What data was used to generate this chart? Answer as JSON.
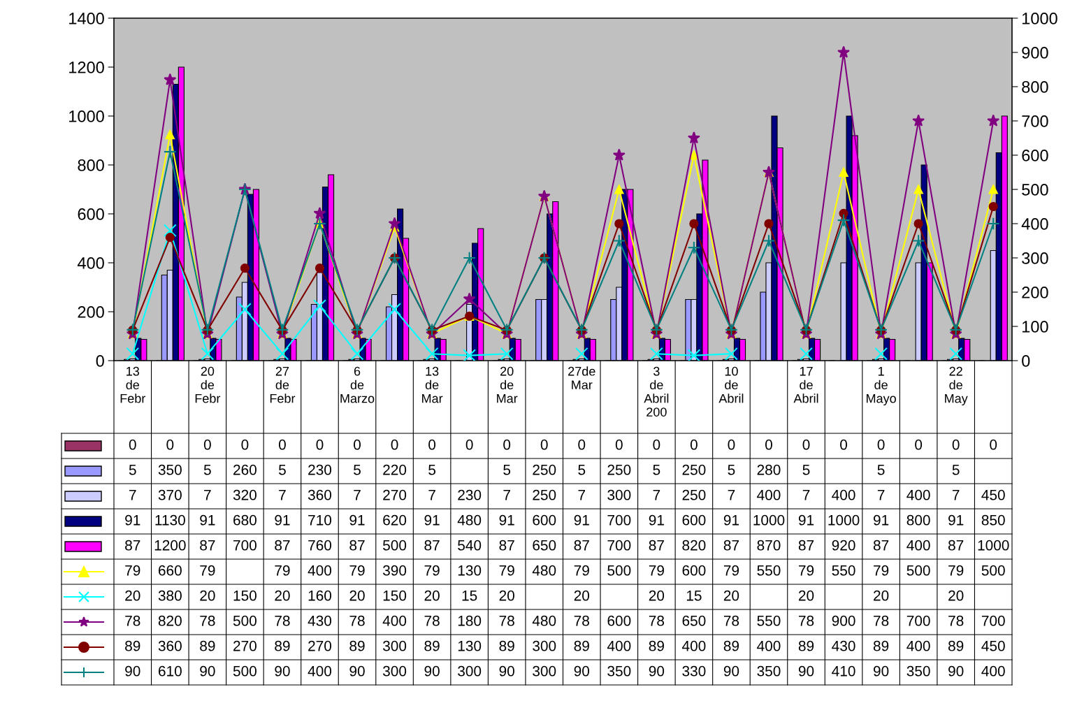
{
  "chart_data": {
    "type": "bar",
    "categories": [
      "13 de Febr",
      null,
      "20 de Febr",
      null,
      "27 de Febr",
      null,
      "6 de Marzo",
      null,
      "13 de Mar",
      null,
      "20 de Mar",
      null,
      "27de Mar",
      null,
      "3 de Abril 200",
      null,
      "10 de Abril",
      null,
      "17 de Abril",
      null,
      "1 de Mayo",
      null,
      "22 de May",
      null
    ],
    "series": [
      {
        "color": "#993366",
        "values": [
          0,
          0,
          0,
          0,
          0,
          0,
          0,
          0,
          0,
          0,
          0,
          0,
          0,
          0,
          0,
          0,
          0,
          0,
          0,
          0,
          0,
          0,
          0,
          0
        ]
      },
      {
        "color": "#9999ff",
        "values": [
          5,
          350,
          5,
          260,
          5,
          230,
          5,
          220,
          5,
          null,
          5,
          250,
          5,
          250,
          5,
          250,
          5,
          280,
          5,
          null,
          5,
          null,
          5,
          null
        ]
      },
      {
        "color": "#ccccff",
        "values": [
          7,
          370,
          7,
          320,
          7,
          360,
          7,
          270,
          7,
          230,
          7,
          250,
          7,
          300,
          7,
          250,
          7,
          400,
          7,
          400,
          7,
          400,
          7,
          450
        ]
      },
      {
        "color": "#000080",
        "values": [
          91,
          1130,
          91,
          680,
          91,
          710,
          91,
          620,
          91,
          480,
          91,
          600,
          91,
          700,
          91,
          600,
          91,
          1000,
          91,
          1000,
          91,
          800,
          91,
          850
        ]
      },
      {
        "color": "#ff00ff",
        "values": [
          87,
          1200,
          87,
          700,
          87,
          760,
          87,
          500,
          87,
          540,
          87,
          650,
          87,
          700,
          87,
          820,
          87,
          870,
          87,
          920,
          87,
          400,
          87,
          1000
        ]
      },
      {
        "type": "line",
        "axis": "y2",
        "color": "#ffff00",
        "marker": "triangle",
        "values": [
          79,
          660,
          79,
          null,
          79,
          400,
          79,
          390,
          79,
          130,
          79,
          480,
          79,
          500,
          79,
          600,
          79,
          550,
          79,
          550,
          79,
          500,
          79,
          500
        ]
      },
      {
        "type": "line",
        "axis": "y2",
        "color": "#00ffff",
        "marker": "cross",
        "values": [
          20,
          380,
          20,
          150,
          20,
          160,
          20,
          150,
          20,
          15,
          20,
          null,
          20,
          null,
          20,
          15,
          20,
          null,
          20,
          null,
          20,
          null,
          20,
          null
        ]
      },
      {
        "type": "line",
        "axis": "y2",
        "color": "#800080",
        "marker": "star",
        "values": [
          78,
          820,
          78,
          500,
          78,
          430,
          78,
          400,
          78,
          180,
          78,
          480,
          78,
          600,
          78,
          650,
          78,
          550,
          78,
          900,
          78,
          700,
          78,
          700
        ]
      },
      {
        "type": "line",
        "axis": "y2",
        "color": "#800000",
        "marker": "circle",
        "values": [
          89,
          360,
          89,
          270,
          89,
          270,
          89,
          300,
          89,
          130,
          89,
          300,
          89,
          400,
          89,
          400,
          89,
          400,
          89,
          430,
          89,
          400,
          89,
          450
        ]
      },
      {
        "type": "line",
        "axis": "y2",
        "color": "#008080",
        "marker": "plus",
        "values": [
          90,
          610,
          90,
          500,
          90,
          400,
          90,
          300,
          90,
          300,
          90,
          300,
          90,
          350,
          90,
          330,
          90,
          350,
          90,
          410,
          90,
          350,
          90,
          400
        ]
      }
    ],
    "ylim": [
      0,
      1400
    ],
    "yticks": [
      0,
      200,
      400,
      600,
      800,
      1000,
      1200,
      1400
    ],
    "y2lim": [
      0,
      1000
    ],
    "y2ticks": [
      0,
      100,
      200,
      300,
      400,
      500,
      600,
      700,
      800,
      900,
      1000
    ],
    "grid": false,
    "data_labels": true
  }
}
